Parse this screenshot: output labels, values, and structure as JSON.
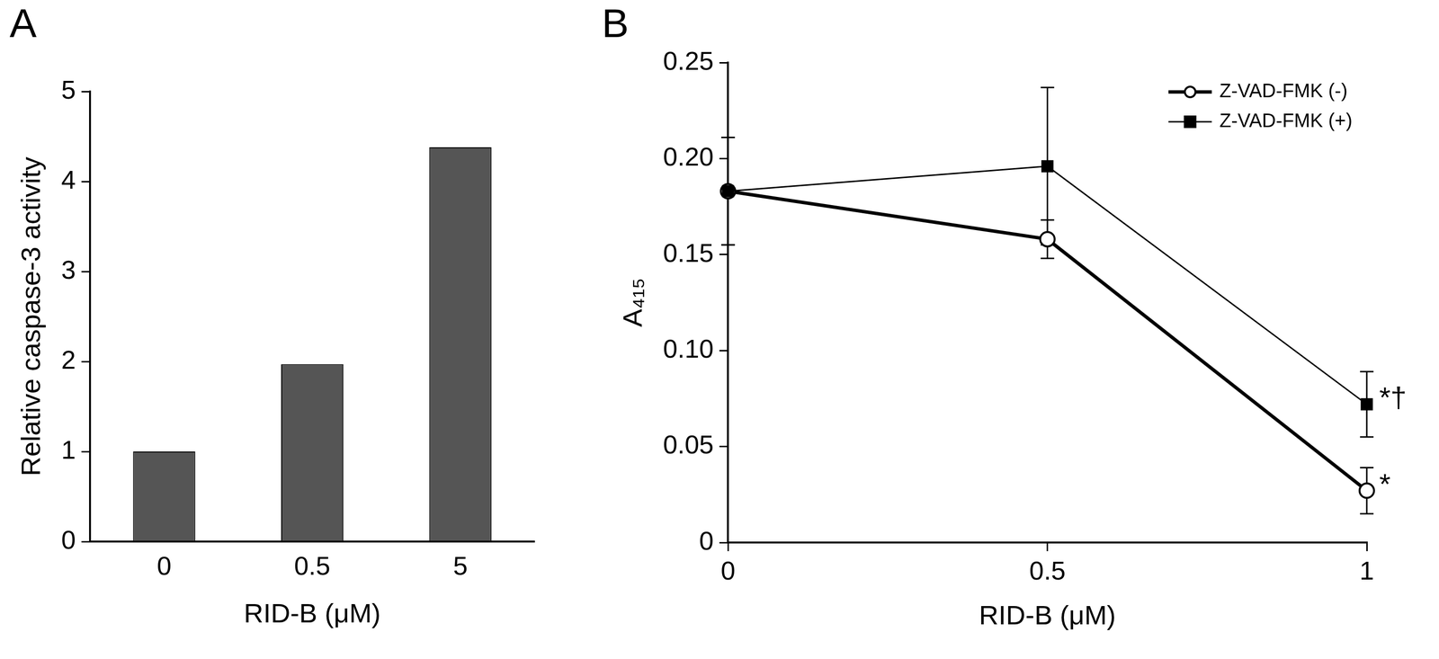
{
  "chart_data": [
    {
      "type": "bar",
      "title": "A",
      "categories": [
        "0",
        "0.5",
        "5"
      ],
      "values": [
        1,
        1.97,
        4.38
      ],
      "color": "#555555",
      "xlabel": "RID-B (μM)",
      "ylabel": "Relative caspase-3 activity",
      "ylim": [
        0,
        5
      ],
      "yticks": [
        0,
        1,
        2,
        3,
        4,
        5
      ],
      "grid": false
    },
    {
      "type": "line",
      "title": "B",
      "x": [
        0,
        0.5,
        1
      ],
      "xlim": [
        0,
        1
      ],
      "xticks": [
        0,
        0.5,
        1
      ],
      "ylim": [
        0,
        0.25
      ],
      "yticks": [
        0,
        0.05,
        {
          "value": 0.1,
          "label": "0.10"
        },
        0.15,
        {
          "value": 0.2,
          "label": "0.20"
        },
        0.25
      ],
      "xlabel": "RID-B (μM)",
      "ylabel": "A₄₁₅",
      "grid": false,
      "legend": "upper right",
      "series": [
        {
          "name": "Z-VAD-FMK (-)",
          "color": "#000000",
          "marker": "circle-open",
          "line_style": "solid",
          "values": [
            0.183,
            0.158,
            0.027
          ],
          "errors": [
            0.028,
            0.01,
            0.012
          ],
          "annotations": [
            null,
            null,
            "*"
          ]
        },
        {
          "name": "Z-VAD-FMK (+)",
          "color": "#000000",
          "marker": "square",
          "line_style": "solid",
          "values": [
            0.183,
            0.196,
            0.072
          ],
          "errors": [
            0.028,
            0.041,
            0.017
          ],
          "annotations": [
            null,
            null,
            "*†"
          ]
        }
      ]
    }
  ]
}
